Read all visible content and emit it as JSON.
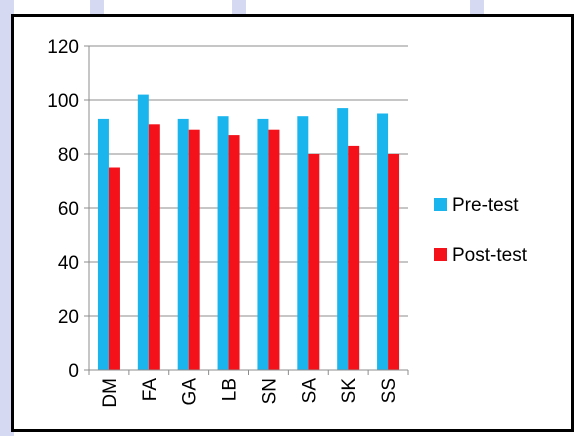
{
  "chart_data": {
    "type": "bar",
    "title": "",
    "xlabel": "",
    "ylabel": "",
    "categories": [
      "DM",
      "FA",
      "GA",
      "LB",
      "SN",
      "SA",
      "SK",
      "SS"
    ],
    "series": [
      {
        "name": "Pre-test",
        "color": "#1bb5ee",
        "values": [
          93,
          102,
          93,
          94,
          93,
          94,
          97,
          95
        ]
      },
      {
        "name": "Post-test",
        "color": "#f5111a",
        "values": [
          75,
          91,
          89,
          87,
          89,
          80,
          83,
          80
        ]
      }
    ],
    "ylim": [
      0,
      120
    ],
    "yticks": [
      0,
      20,
      40,
      60,
      80,
      100,
      120
    ],
    "grid": true,
    "legend": "right",
    "x_tick_rotation": "vertical"
  }
}
